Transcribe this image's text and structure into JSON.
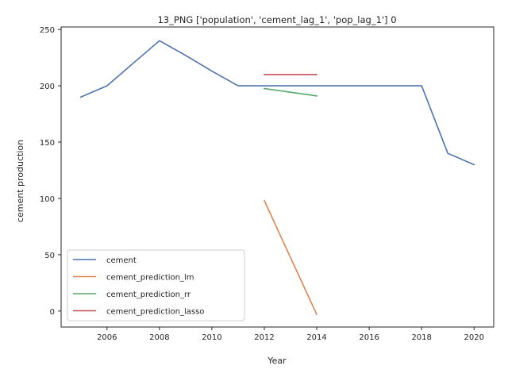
{
  "chart_data": {
    "type": "line",
    "title": "13_PNG ['population', 'cement_lag_1', 'pop_lag_1'] 0",
    "xlabel": "Year",
    "ylabel": "cement production",
    "xlim": [
      2004.25,
      2020.75
    ],
    "ylim": [
      -14.2,
      252.2
    ],
    "x_ticks": [
      2006,
      2008,
      2010,
      2012,
      2014,
      2016,
      2018,
      2020
    ],
    "y_ticks": [
      0,
      50,
      100,
      150,
      200,
      250
    ],
    "grid": false,
    "legend_position": "lower-left",
    "series": [
      {
        "name": "cement",
        "color": "#4c72b0",
        "x": [
          2005,
          2006,
          2007,
          2008,
          2009,
          2010,
          2011,
          2012,
          2013,
          2014,
          2015,
          2016,
          2017,
          2018,
          2019,
          2020
        ],
        "y": [
          190,
          200,
          220,
          240,
          227,
          213,
          200,
          200,
          200,
          200,
          200,
          200,
          200,
          200,
          140,
          130
        ]
      },
      {
        "name": "cement_prediction_lm",
        "color": "#dd8452",
        "x": [
          2012,
          2014
        ],
        "y": [
          98,
          -3
        ]
      },
      {
        "name": "cement_prediction_rr",
        "color": "#55a868",
        "x": [
          2012,
          2014
        ],
        "y": [
          197.5,
          191
        ]
      },
      {
        "name": "cement_prediction_lasso",
        "color": "#c44e52",
        "x": [
          2012,
          2014
        ],
        "y": [
          210,
          210
        ]
      }
    ]
  }
}
